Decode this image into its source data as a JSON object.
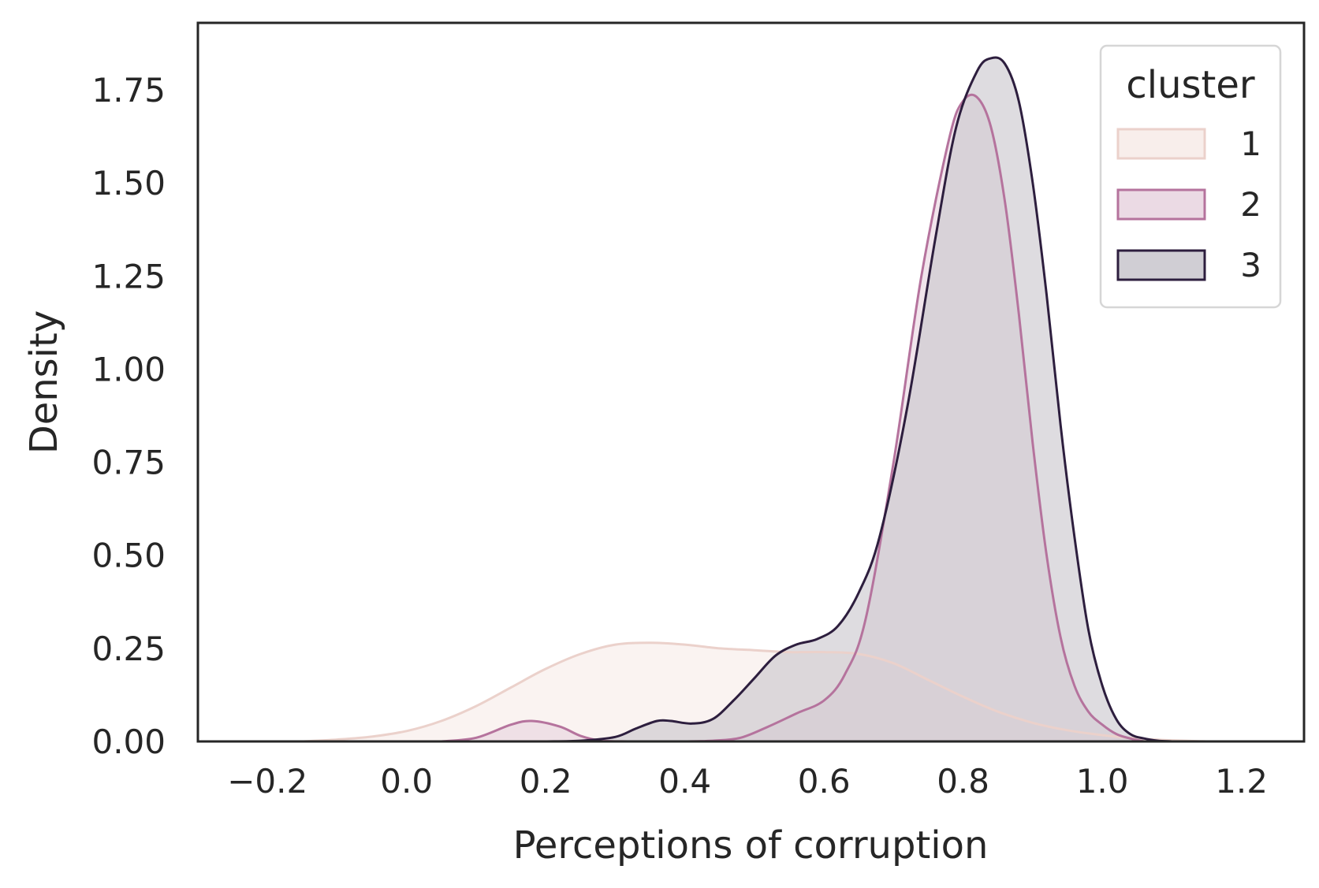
{
  "chart_data": {
    "type": "area",
    "title": "",
    "xlabel": "Perceptions of corruption",
    "ylabel": "Density",
    "xlim": [
      -0.3,
      1.29
    ],
    "ylim": [
      0,
      1.93
    ],
    "xticks": [
      -0.2,
      0.0,
      0.2,
      0.4,
      0.6,
      0.8,
      1.0,
      1.2
    ],
    "xtick_labels": [
      "−0.2",
      "0.0",
      "0.2",
      "0.4",
      "0.6",
      "0.8",
      "1.0",
      "1.2"
    ],
    "yticks": [
      0.0,
      0.25,
      0.5,
      0.75,
      1.0,
      1.25,
      1.5,
      1.75
    ],
    "ytick_labels": [
      "0.00",
      "0.25",
      "0.50",
      "0.75",
      "1.00",
      "1.25",
      "1.50",
      "1.75"
    ],
    "grid": false,
    "legend": {
      "title": "cluster",
      "placement": "top-right"
    },
    "series": [
      {
        "name": "1",
        "line_color": "#ebd1cb",
        "fill_color": "#f7ebe8",
        "x": [
          -0.15,
          -0.1,
          -0.05,
          0.0,
          0.05,
          0.1,
          0.15,
          0.2,
          0.25,
          0.3,
          0.35,
          0.4,
          0.45,
          0.5,
          0.55,
          0.6,
          0.65,
          0.7,
          0.75,
          0.8,
          0.85,
          0.9,
          0.95,
          1.0,
          1.05,
          1.1,
          1.15
        ],
        "y": [
          0.0,
          0.005,
          0.013,
          0.028,
          0.055,
          0.095,
          0.145,
          0.195,
          0.235,
          0.26,
          0.265,
          0.26,
          0.25,
          0.245,
          0.24,
          0.24,
          0.235,
          0.21,
          0.165,
          0.12,
          0.08,
          0.05,
          0.03,
          0.017,
          0.008,
          0.003,
          0.0
        ]
      },
      {
        "name": "2",
        "line_color": "#b5739d",
        "fill_color": "#e8d3df",
        "x": [
          0.05,
          0.1,
          0.15,
          0.18,
          0.22,
          0.25,
          0.28,
          0.32,
          0.36,
          0.4,
          0.44,
          0.48,
          0.52,
          0.56,
          0.6,
          0.63,
          0.66,
          0.7,
          0.74,
          0.78,
          0.8,
          0.82,
          0.84,
          0.86,
          0.88,
          0.9,
          0.92,
          0.94,
          0.96,
          0.98,
          1.0,
          1.02,
          1.04,
          1.06
        ],
        "y": [
          0.0,
          0.01,
          0.045,
          0.055,
          0.04,
          0.015,
          0.002,
          0.0,
          0.0,
          0.0,
          0.002,
          0.01,
          0.04,
          0.075,
          0.11,
          0.18,
          0.33,
          0.75,
          1.25,
          1.62,
          1.72,
          1.73,
          1.65,
          1.45,
          1.15,
          0.8,
          0.5,
          0.28,
          0.15,
          0.08,
          0.045,
          0.02,
          0.008,
          0.0
        ]
      },
      {
        "name": "3",
        "line_color": "#2d1e3e",
        "fill_color": "#c8c5cc",
        "x": [
          0.2,
          0.25,
          0.3,
          0.33,
          0.36,
          0.38,
          0.41,
          0.44,
          0.47,
          0.5,
          0.53,
          0.56,
          0.59,
          0.62,
          0.65,
          0.68,
          0.72,
          0.76,
          0.79,
          0.82,
          0.84,
          0.86,
          0.88,
          0.9,
          0.92,
          0.94,
          0.96,
          0.98,
          1.0,
          1.02,
          1.04,
          1.06,
          1.08,
          1.1
        ],
        "y": [
          0.0,
          0.002,
          0.012,
          0.035,
          0.055,
          0.055,
          0.048,
          0.06,
          0.11,
          0.17,
          0.23,
          0.26,
          0.275,
          0.31,
          0.4,
          0.55,
          0.9,
          1.35,
          1.65,
          1.8,
          1.835,
          1.82,
          1.72,
          1.5,
          1.2,
          0.85,
          0.55,
          0.3,
          0.15,
          0.06,
          0.02,
          0.008,
          0.002,
          0.0
        ]
      }
    ]
  }
}
